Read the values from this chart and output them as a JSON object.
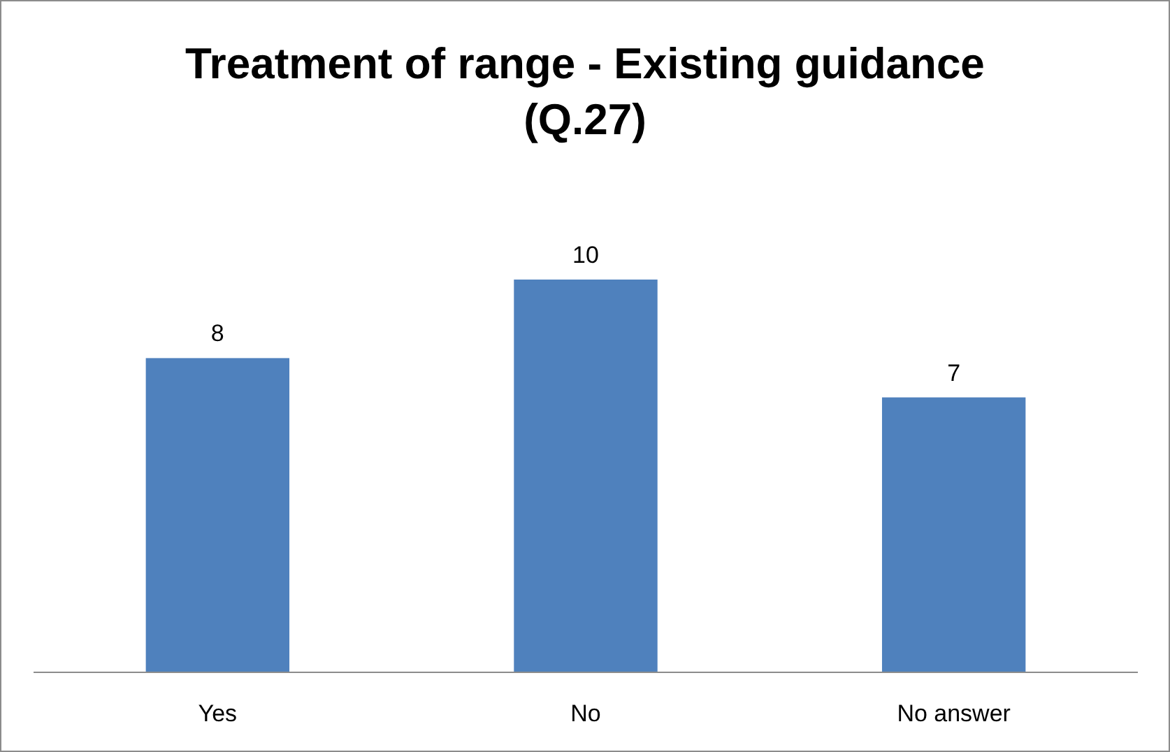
{
  "chart_data": {
    "type": "bar",
    "title": "Treatment of range - Existing guidance (Q.27)",
    "categories": [
      "Yes",
      "No",
      "No answer"
    ],
    "values": [
      8,
      10,
      7
    ],
    "color": "#4f81bd",
    "data_labels": true
  }
}
